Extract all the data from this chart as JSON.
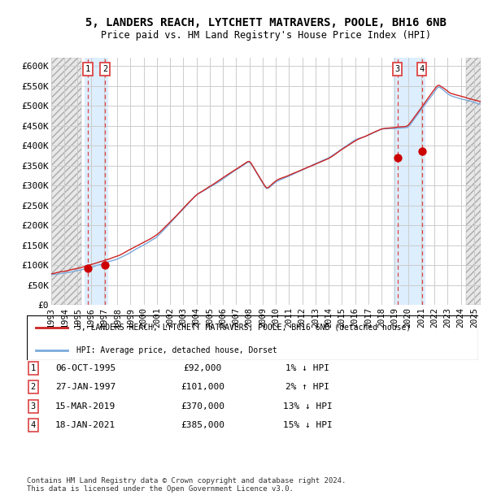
{
  "title_line1": "5, LANDERS REACH, LYTCHETT MATRAVERS, POOLE, BH16 6NB",
  "title_line2": "Price paid vs. HM Land Registry's House Price Index (HPI)",
  "ylim": [
    0,
    620000
  ],
  "xlim_start": 1993.0,
  "xlim_end": 2025.5,
  "yticks": [
    0,
    50000,
    100000,
    150000,
    200000,
    250000,
    300000,
    350000,
    400000,
    450000,
    500000,
    550000,
    600000
  ],
  "ytick_labels": [
    "£0",
    "£50K",
    "£100K",
    "£150K",
    "£200K",
    "£250K",
    "£300K",
    "£350K",
    "£400K",
    "£450K",
    "£500K",
    "£550K",
    "£600K"
  ],
  "xticks": [
    1993,
    1994,
    1995,
    1996,
    1997,
    1998,
    1999,
    2000,
    2001,
    2002,
    2003,
    2004,
    2005,
    2006,
    2007,
    2008,
    2009,
    2010,
    2011,
    2012,
    2013,
    2014,
    2015,
    2016,
    2017,
    2018,
    2019,
    2020,
    2021,
    2022,
    2023,
    2024,
    2025
  ],
  "sale_markers": [
    {
      "num": 1,
      "date": "06-OCT-1995",
      "year": 1995.76,
      "price": 92000
    },
    {
      "num": 2,
      "date": "27-JAN-1997",
      "year": 1997.07,
      "price": 101000
    },
    {
      "num": 3,
      "date": "15-MAR-2019",
      "year": 2019.2,
      "price": 370000
    },
    {
      "num": 4,
      "date": "18-JAN-2021",
      "year": 2021.05,
      "price": 385000
    }
  ],
  "highlight_spans": [
    {
      "xmin": 1995.5,
      "xmax": 1997.25,
      "color": "#ddeeff"
    },
    {
      "xmin": 2018.9,
      "xmax": 2021.25,
      "color": "#ddeeff"
    }
  ],
  "hatch_left_end": 1995.3,
  "hatch_right_start": 2024.42,
  "vline_color": "#dd4444",
  "hpi_color": "#7aaadd",
  "price_color": "#cc2222",
  "marker_color": "#cc0000",
  "grid_color": "#cccccc",
  "legend_label_price": "5, LANDERS REACH, LYTCHETT MATRAVERS, POOLE, BH16 6NB (detached house)",
  "legend_label_hpi": "HPI: Average price, detached house, Dorset",
  "table_rows": [
    {
      "num": 1,
      "date": "06-OCT-1995",
      "price": "£92,000",
      "pct": "1% ↓ HPI"
    },
    {
      "num": 2,
      "date": "27-JAN-1997",
      "price": "£101,000",
      "pct": "2% ↑ HPI"
    },
    {
      "num": 3,
      "date": "15-MAR-2019",
      "price": "£370,000",
      "pct": "13% ↓ HPI"
    },
    {
      "num": 4,
      "date": "18-JAN-2021",
      "price": "£385,000",
      "pct": "15% ↓ HPI"
    }
  ],
  "footer": "Contains HM Land Registry data © Crown copyright and database right 2024.\nThis data is licensed under the Open Government Licence v3.0."
}
